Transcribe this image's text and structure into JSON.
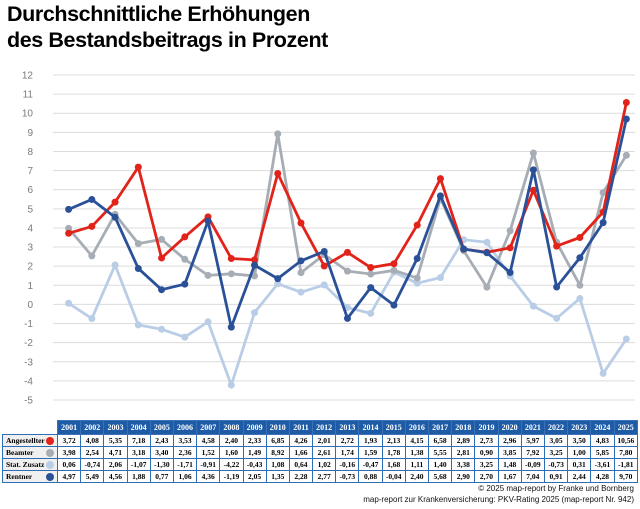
{
  "title": {
    "line1": "Durchschnittliche Erhöhungen",
    "line2": "des Bestandsbeitrags in Prozent"
  },
  "footer": {
    "line1": "© 2025 map-report by Franke und Bornberg",
    "line2": "map-report zur Krankenversicherung: PKV-Rating 2025 (map-report Nr. 942)"
  },
  "colors": {
    "angestellter": "#e2231a",
    "beamter": "#a6adb4",
    "stat_zusatz": "#b9cde6",
    "rentner": "#2a5198",
    "table_header_bg": "#1d5ba6",
    "table_border": "#2f6db5",
    "gridline": "#dcdcdc"
  },
  "chart_data": {
    "type": "line",
    "title": "Durchschnittliche Erhöhungen des Bestandsbeitrags in Prozent",
    "x": [
      2001,
      2002,
      2003,
      2004,
      2005,
      2006,
      2007,
      2008,
      2009,
      2010,
      2011,
      2012,
      2013,
      2014,
      2015,
      2016,
      2017,
      2018,
      2019,
      2020,
      2021,
      2022,
      2023,
      2024,
      2025
    ],
    "series": [
      {
        "name": "Angestellter",
        "color": "#e2231a",
        "values": [
          3.72,
          4.08,
          5.35,
          7.18,
          2.43,
          3.53,
          4.58,
          2.4,
          2.33,
          6.85,
          4.26,
          2.01,
          2.72,
          1.93,
          2.13,
          4.15,
          6.58,
          2.89,
          2.73,
          2.96,
          5.97,
          3.05,
          3.5,
          4.83,
          10.56
        ]
      },
      {
        "name": "Beamter",
        "color": "#a6adb4",
        "values": [
          3.98,
          2.54,
          4.71,
          3.18,
          3.4,
          2.36,
          1.52,
          1.6,
          1.49,
          8.92,
          1.66,
          2.61,
          1.74,
          1.59,
          1.78,
          1.38,
          5.55,
          2.81,
          0.9,
          3.85,
          7.92,
          3.25,
          1.0,
          5.85,
          7.8
        ]
      },
      {
        "name": "Stat. Zusatz",
        "color": "#b9cde6",
        "values": [
          0.06,
          -0.74,
          2.06,
          -1.07,
          -1.3,
          -1.71,
          -0.91,
          -4.22,
          -0.43,
          1.08,
          0.64,
          1.02,
          -0.16,
          -0.47,
          1.68,
          1.11,
          1.4,
          3.38,
          3.25,
          1.48,
          -0.09,
          -0.73,
          0.31,
          -3.61,
          -1.81
        ]
      },
      {
        "name": "Rentner",
        "color": "#2a5198",
        "values": [
          4.97,
          5.49,
          4.56,
          1.88,
          0.77,
          1.06,
          4.36,
          -1.19,
          2.05,
          1.35,
          2.28,
          2.77,
          -0.73,
          0.88,
          -0.04,
          2.4,
          5.68,
          2.9,
          2.7,
          1.67,
          7.04,
          0.91,
          2.44,
          4.28,
          9.7
        ]
      }
    ],
    "ylim": [
      -5,
      12
    ],
    "ytick_step": 1,
    "xlabel": "",
    "ylabel": "",
    "grid": "horizontal",
    "legend_position": "table-row-labels",
    "draw_order": [
      "Stat. Zusatz",
      "Beamter",
      "Angestellter",
      "Rentner"
    ],
    "number_format": "comma-decimal-2dp"
  }
}
